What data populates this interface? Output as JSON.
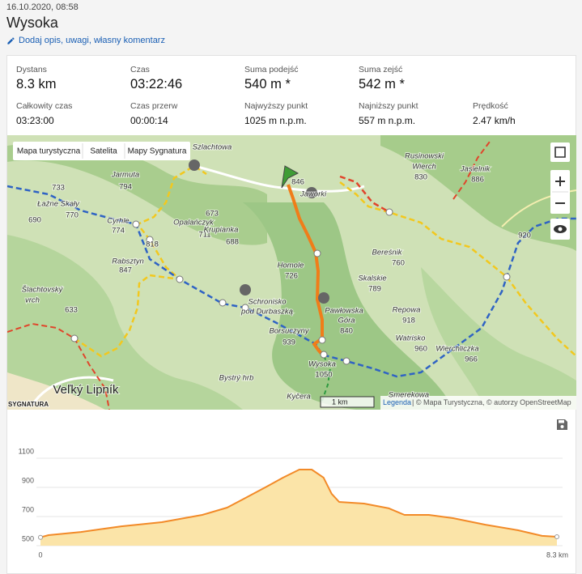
{
  "header": {
    "date": "16.10.2020, 08:58",
    "title": "Wysoka",
    "edit_link": "Dodaj opis, uwagi, własny komentarz"
  },
  "stats": [
    {
      "label": "Dystans",
      "value": "8.3 km"
    },
    {
      "label": "Czas",
      "value": "03:22:46"
    },
    {
      "label": "Suma podejść",
      "value": "540 m *"
    },
    {
      "label": "Suma zejść",
      "value": "542 m *"
    },
    {
      "label": "Całkowity czas",
      "value": "03:23:00"
    },
    {
      "label": "Czas przerw",
      "value": "00:00:14"
    },
    {
      "label": "Najwyższy punkt",
      "value": "1025 m n.p.m."
    },
    {
      "label": "Najniższy punkt",
      "value": "557 m n.p.m."
    },
    {
      "label": "Prędkość",
      "value": "2.47 km/h"
    }
  ],
  "map": {
    "tabs": [
      "Mapa turystyczna",
      "Satelita",
      "Mapy Sygnatura"
    ],
    "labels": [
      "Szlachtowa",
      "Jarmuta",
      "794",
      "733",
      "Łaźne Skały",
      "770",
      "690",
      "Cyrhle",
      "774",
      "818",
      "Opalańczyk",
      "711",
      "673",
      "Krupianka",
      "688",
      "Rabsztyn",
      "847",
      "Homole",
      "726",
      "Šlachtovský",
      "vrch",
      "633",
      "Schronisko",
      "pod Durbaszką",
      "Pawłowska",
      "Góra",
      "840",
      "Borsuczyny",
      "939",
      "Wysoka",
      "1050",
      "Bystrý hrb",
      "Kyčera",
      "Veľký Lipník",
      "Rusinowski",
      "Wierch",
      "830",
      "Jasielnik",
      "886",
      "Jaworki",
      "Bereśnik",
      "760",
      "Skalskie",
      "789",
      "Repowa",
      "918",
      "Watrisko",
      "960",
      "Wierchliczka",
      "966",
      "Smerekowa",
      "920",
      "846",
      "SYGNATURA"
    ],
    "scale": "1 km",
    "legend_link": "Legenda",
    "attribution": "| © Mapa Turystyczna, © autorzy OpenStreetMap"
  },
  "elevation_chart": {
    "type": "area",
    "color": "#f28a28",
    "grid": true,
    "x": [
      0,
      0.13,
      0.65,
      1.3,
      1.95,
      2.6,
      3.0,
      3.25,
      3.64,
      3.9,
      4.16,
      4.36,
      4.55,
      4.68,
      4.8,
      5.2,
      5.6,
      5.85,
      6.24,
      6.63,
      7.15,
      7.67,
      8.06,
      8.3
    ],
    "values": [
      557,
      572,
      594,
      633,
      661,
      711,
      761,
      817,
      906,
      967,
      1022,
      1022,
      967,
      856,
      800,
      789,
      756,
      711,
      711,
      689,
      644,
      606,
      567,
      561
    ],
    "xlim": [
      0,
      8.3
    ],
    "xticks": [
      0,
      {
        "value": 8.3,
        "label": "8.3 km"
      }
    ],
    "ylim": [
      500,
      1100
    ],
    "yticks": [
      500,
      700,
      900,
      1100
    ]
  }
}
